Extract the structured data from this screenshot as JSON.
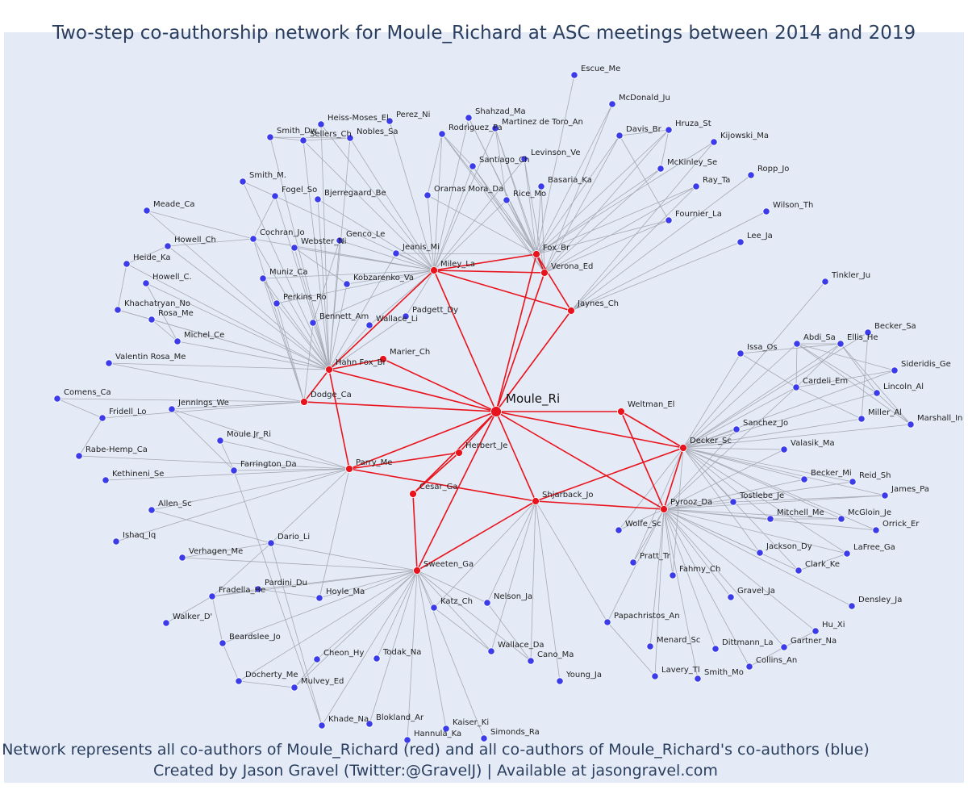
{
  "title": "Two-step co-authorship network for Moule_Richard at ASC meetings between 2014 and 2019",
  "footer_line1": "Network represents all co-authors of Moule_Richard (red) and all co-authors of Moule_Richard's co-authors (blue)",
  "footer_line2": "Created by Jason Gravel (Twitter:@GravelJ) | Available at jasongravel.com",
  "colors": {
    "background": "#e5ebf6",
    "red": "#e8131c",
    "blue": "#3b3bea",
    "grey_edge": "#a6a9b4",
    "red_edge": "#e8131c"
  },
  "center_node": "Moule_Ri",
  "red_nodes": [
    "Moule_Ri",
    "Miley_La",
    "Fox_Br",
    "Verona_Ed",
    "Jaynes_Ch",
    "Hahn Fox_Br",
    "Marier_Ch",
    "Dodge_Ca",
    "Parry_Me",
    "Herbert_Je",
    "Cesar_Ga",
    "Sweeten_Ga",
    "Shjarback_Jo",
    "Weltman_El",
    "Decker_Sc",
    "Pyrooz_Da"
  ],
  "blue_nodes": [
    "Escue_Me",
    "McDonald_Ju",
    "Shahzad_Ma",
    "Rodriguez_Pa",
    "Martinez de Toro_An",
    "Davis_Br",
    "Hruza_St",
    "Kijowski_Ma",
    "Heiss-Moses_El",
    "Perez_Ni",
    "Smith_Dw",
    "Sellers_Ch",
    "Nobles_Sa",
    "Levinson_Ve",
    "Santiago_Ch",
    "McKinley_Se",
    "Ropp_Jo",
    "Smith_M.",
    "Basaria_Ka",
    "Ray_Ta",
    "Rice_Mo",
    "Oramas Mora_Da",
    "Fogel_So",
    "Bjerregaard_Be",
    "Meade_Ca",
    "Wilson_Th",
    "Fournier_La",
    "Lee_Ja",
    "Genco_Le",
    "Cochran_Jo",
    "Howell_Ch",
    "Webster_Ni",
    "Jeanis_Mi",
    "Heide_Ka",
    "Muniz_Ca",
    "Kobzarenko_Va",
    "Howell_C.",
    "Tinkler_Ju",
    "Perkins_Ro",
    "Padgett_Dy",
    "Khachatryan_No",
    "Rosa_Me",
    "Bennett_Am",
    "Wallace_Li",
    "Becker_Sa",
    "Abdi_Sa",
    "Ellis_He",
    "Issa_Os",
    "Michel_Ce",
    "Sideridis_Ge",
    "Valentin Rosa_Me",
    "Cardeli_Em",
    "Lincoln_Al",
    "Comens_Ca",
    "Jennings_We",
    "Miller_Al",
    "Marshall_In",
    "Fridell_Lo",
    "Sanchez_Jo",
    "Moule Jr_Ri",
    "Valasik_Ma",
    "Rabe-Hemp_Ca",
    "Farrington_Da",
    "Becker_Mi",
    "Reid_Sh",
    "Kethineni_Se",
    "James_Pa",
    "Tostlebe_Je",
    "Allen_Sc",
    "McGloin_Je",
    "Mitchell_Me",
    "Orrick_Er",
    "Wolfe_Sc",
    "Ishaq_Iq",
    "Dario_Li",
    "LaFree_Ga",
    "Jackson_Dy",
    "Verhagen_Me",
    "Pratt_Tr",
    "Clark_Ke",
    "Fahmy_Ch",
    "Pardini_Du",
    "Fradella_He",
    "Hoyle_Ma",
    "Gravel_Ja",
    "Densley_Ja",
    "Katz_Ch",
    "Nelson_Ja",
    "Walker_D'",
    "Papachristos_An",
    "Hu_Xi",
    "Beardslee_Jo",
    "Menard_Sc",
    "Gartner_Na",
    "Dittmann_La",
    "Wallace_Da",
    "Cano_Ma",
    "Cheon_Hy",
    "Todak_Na",
    "Collins_An",
    "Lavery_Tl",
    "Smith_Mo",
    "Docherty_Me",
    "Young_Ja",
    "Mulvey_Ed",
    "Khade_Na",
    "Blokland_Ar",
    "Kaiser_Ki",
    "Simonds_Ra",
    "Hannula_Ka"
  ]
}
